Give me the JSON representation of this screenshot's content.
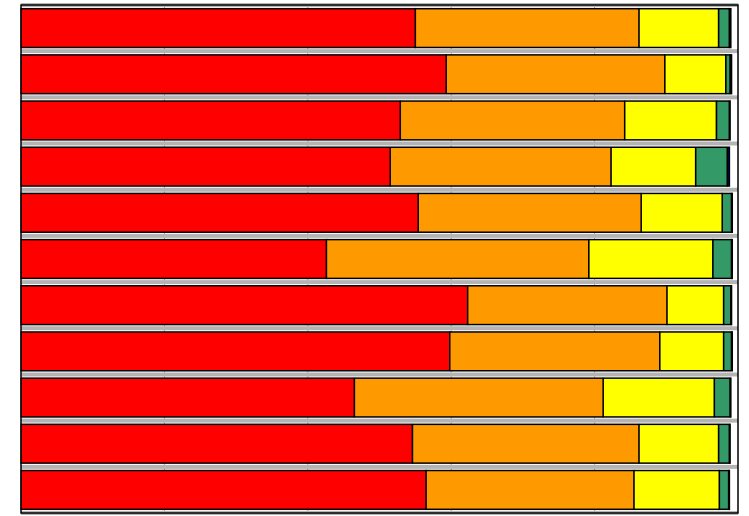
{
  "chart_data": {
    "type": "bar",
    "orientation": "horizontal",
    "stacked": true,
    "normalized_percent": true,
    "grid": true,
    "legend": "none",
    "xlim": [
      0,
      100
    ],
    "categories": [
      "",
      "",
      "",
      "",
      "",
      "",
      "",
      "",
      "",
      "",
      ""
    ],
    "series": [
      {
        "color": "#ff0000",
        "values": [
          55.0,
          59.3,
          52.9,
          51.5,
          55.4,
          42.6,
          62.3,
          59.8,
          46.5,
          54.6,
          56.5
        ]
      },
      {
        "color": "#ff9900",
        "values": [
          31.2,
          30.5,
          31.3,
          30.8,
          31.1,
          36.6,
          27.8,
          29.3,
          34.7,
          31.6,
          29.0
        ]
      },
      {
        "color": "#ffff00",
        "values": [
          11.1,
          8.5,
          12.8,
          11.8,
          11.3,
          17.3,
          7.9,
          8.9,
          15.5,
          11.1,
          11.9
        ]
      },
      {
        "color": "#339966",
        "values": [
          1.5,
          0.6,
          1.8,
          4.4,
          1.3,
          2.6,
          1.0,
          1.1,
          2.2,
          1.5,
          1.3
        ]
      },
      {
        "color": "#000080",
        "values": [
          0.2,
          0.2,
          0.1,
          0.3,
          0.1,
          0.1,
          0.1,
          0.1,
          0.1,
          0.1,
          0.1
        ]
      }
    ]
  }
}
